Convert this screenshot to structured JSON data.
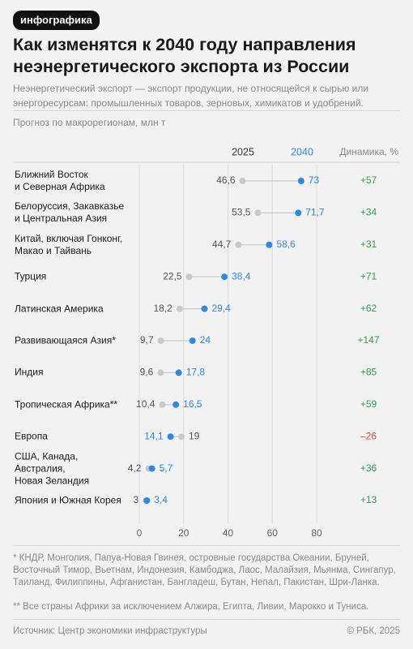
{
  "header": {
    "badge": "инфографика"
  },
  "chart_data": {
    "type": "dumbbell",
    "title": "Как изменятся к 2040 году направления неэнергетического экспорта из России",
    "subtitle": "Неэнергетический экспорт — экспорт продукции, не относящейся к сырью или энергоресурсам: промышленных товаров, зерновых, химикатов и удобрений.",
    "note": "Прогноз по макрорегионам, млн т",
    "change_header": "Динамика, %",
    "categories": [
      "Ближний Восток\nи Северная Африка",
      "Белоруссия, Закавказье\nи Центральная Азия",
      "Китай, включая Гонконг,\nМакао и Тайвань",
      "Турция",
      "Латинская Америка",
      "Развивающаяся Азия*",
      "Индия",
      "Тропическая Африка**",
      "Европа",
      "США, Канада,\nАвстралия,\nНовая Зеландия",
      "Япония и Южная Корея"
    ],
    "series": [
      {
        "name": "2025",
        "color": "#c9c9c9",
        "values": [
          46.6,
          53.5,
          44.7,
          22.5,
          18.2,
          9.7,
          9.6,
          10.4,
          19,
          4.2,
          3
        ],
        "value_labels": [
          "46,6",
          "53,5",
          "44,7",
          "22,5",
          "18,2",
          "9,7",
          "9,6",
          "10,4",
          "19",
          "4,2",
          "3"
        ]
      },
      {
        "name": "2040",
        "color": "#2a8ae6",
        "values": [
          73,
          71.7,
          58.6,
          38.4,
          29.4,
          24,
          17.8,
          16.5,
          14.1,
          5.7,
          3.4
        ],
        "value_labels": [
          "73",
          "71,7",
          "58,6",
          "38,4",
          "29,4",
          "24",
          "17,8",
          "16,5",
          "14,1",
          "5,7",
          "3,4"
        ]
      }
    ],
    "change": [
      "+57",
      "+34",
      "+31",
      "+71",
      "+62",
      "+147",
      "+85",
      "+59",
      "–26",
      "+36",
      "+13"
    ],
    "xlim": [
      0,
      80
    ],
    "xticks": [
      0,
      20,
      40,
      60,
      80
    ],
    "grid": true
  },
  "footnotes": [
    "* КНДР, Монголия, Папуа-Новая Гвинея, островные государства Океании, Бруней, Восточный Тимор, Вьетнам, Индонезия, Камбоджа, Лаос, Малайзия, Мьянма, Сингапур, Таиланд, Филиппины, Афганистан, Бангладеш, Бутан, Непал, Пакистан, Шри-Ланка.",
    "** Все страны Африки за исключением Алжира, Египта, Ливии, Марокко и Туниса."
  ],
  "source": "Источник: Центр экономики инфраструктуры",
  "copyright": "© РБК, 2025"
}
